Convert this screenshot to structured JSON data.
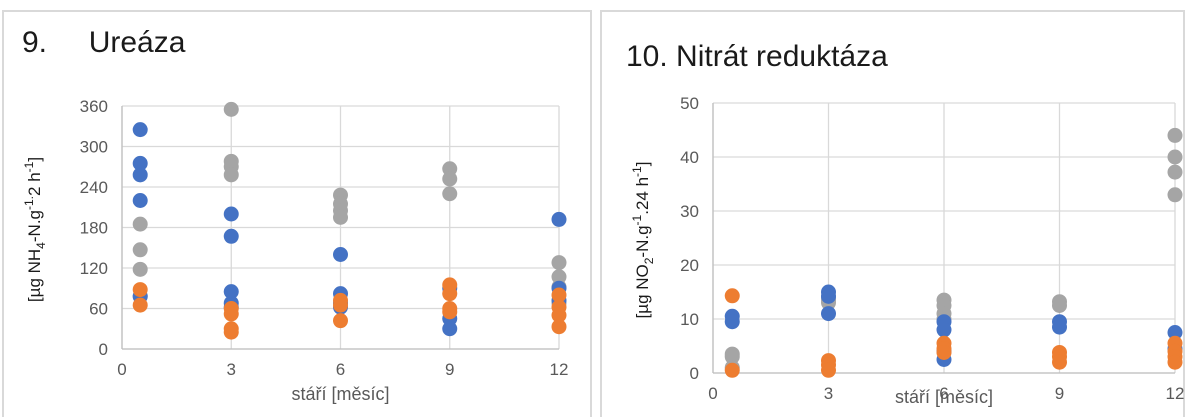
{
  "colors": {
    "blue": "#4472c4",
    "orange": "#ed7d31",
    "gray": "#a5a5a5"
  },
  "chart_data": [
    {
      "type": "scatter",
      "title": "9.     Ureáza",
      "xlabel": "stáří [měsíc]",
      "ylabel": {
        "pre": "[µg NH",
        "sub1": "4",
        "mid": "-N.g",
        "sup1": "-1.",
        "mid2": "2 h",
        "sup2": "-1",
        "post": "]"
      },
      "xlim": [
        0,
        12
      ],
      "ylim": [
        0,
        360
      ],
      "xticks": [
        "0",
        "3",
        "6",
        "9",
        "12"
      ],
      "yticks": [
        "0",
        "60",
        "120",
        "180",
        "240",
        "300",
        "360"
      ],
      "grid": true,
      "series": [
        {
          "color": "blue",
          "points": [
            [
              0.5,
              325
            ],
            [
              0.5,
              275
            ],
            [
              0.5,
              258
            ],
            [
              0.5,
              220
            ],
            [
              0.5,
              78
            ],
            [
              3,
              200
            ],
            [
              3,
              167
            ],
            [
              3,
              85
            ],
            [
              3,
              68
            ],
            [
              3,
              62
            ],
            [
              6,
              140
            ],
            [
              6,
              82
            ],
            [
              6,
              68
            ],
            [
              6,
              62
            ],
            [
              9,
              90
            ],
            [
              9,
              45
            ],
            [
              9,
              30
            ],
            [
              12,
              192
            ],
            [
              12,
              90
            ],
            [
              12,
              72
            ]
          ]
        },
        {
          "color": "orange",
          "points": [
            [
              0.5,
              88
            ],
            [
              0.5,
              65
            ],
            [
              3,
              60
            ],
            [
              3,
              52
            ],
            [
              3,
              30
            ],
            [
              3,
              25
            ],
            [
              6,
              72
            ],
            [
              6,
              65
            ],
            [
              6,
              42
            ],
            [
              9,
              95
            ],
            [
              9,
              82
            ],
            [
              9,
              60
            ],
            [
              9,
              55
            ],
            [
              12,
              80
            ],
            [
              12,
              62
            ],
            [
              12,
              50
            ],
            [
              12,
              33
            ]
          ]
        },
        {
          "color": "gray",
          "points": [
            [
              0.5,
              185
            ],
            [
              0.5,
              147
            ],
            [
              0.5,
              118
            ],
            [
              0.5,
              78
            ],
            [
              3,
              355
            ],
            [
              3,
              278
            ],
            [
              3,
              270
            ],
            [
              3,
              258
            ],
            [
              6,
              228
            ],
            [
              6,
              215
            ],
            [
              6,
              205
            ],
            [
              6,
              195
            ],
            [
              9,
              267
            ],
            [
              9,
              252
            ],
            [
              9,
              230
            ],
            [
              12,
              128
            ],
            [
              12,
              107
            ],
            [
              12,
              92
            ],
            [
              12,
              68
            ]
          ]
        }
      ]
    },
    {
      "type": "scatter",
      "title": "10. Nitrát reduktáza",
      "xlabel": "stáří [měsíc]",
      "ylabel": {
        "pre": "[µg NO",
        "sub1": "2",
        "mid": "-N.g",
        "sup1": "-1",
        "mid2": ".24 h",
        "sup2": "-1",
        "post": "]"
      },
      "xlim": [
        0,
        12
      ],
      "ylim": [
        0,
        50
      ],
      "xticks": [
        "0",
        "3",
        "6",
        "9",
        "12"
      ],
      "yticks": [
        "0",
        "10",
        "20",
        "30",
        "40",
        "50"
      ],
      "grid": true,
      "series": [
        {
          "color": "blue",
          "points": [
            [
              0.5,
              10.5
            ],
            [
              0.5,
              9.5
            ],
            [
              3,
              15
            ],
            [
              3,
              14.2
            ],
            [
              3,
              11
            ],
            [
              6,
              9.5
            ],
            [
              6,
              8
            ],
            [
              6,
              4
            ],
            [
              6,
              2.5
            ],
            [
              9,
              9.5
            ],
            [
              9,
              8.5
            ],
            [
              12,
              7.5
            ],
            [
              12,
              4.5
            ]
          ]
        },
        {
          "color": "orange",
          "points": [
            [
              0.5,
              14.3
            ],
            [
              0.5,
              0.5
            ],
            [
              3,
              2.3
            ],
            [
              3,
              1.5
            ],
            [
              3,
              0.5
            ],
            [
              6,
              5.5
            ],
            [
              6,
              4.5
            ],
            [
              6,
              3.8
            ],
            [
              9,
              3.8
            ],
            [
              9,
              3
            ],
            [
              9,
              2
            ],
            [
              12,
              5.5
            ],
            [
              12,
              4
            ],
            [
              12,
              3
            ],
            [
              12,
              2
            ]
          ]
        },
        {
          "color": "gray",
          "points": [
            [
              0.5,
              3.5
            ],
            [
              0.5,
              3
            ],
            [
              0.5,
              1
            ],
            [
              3,
              14
            ],
            [
              3,
              13.5
            ],
            [
              3,
              13
            ],
            [
              6,
              13.5
            ],
            [
              6,
              12.5
            ],
            [
              6,
              11
            ],
            [
              6,
              10
            ],
            [
              9,
              13.2
            ],
            [
              9,
              12.5
            ],
            [
              12,
              44
            ],
            [
              12,
              40
            ],
            [
              12,
              37.2
            ],
            [
              12,
              33
            ]
          ]
        }
      ]
    }
  ]
}
